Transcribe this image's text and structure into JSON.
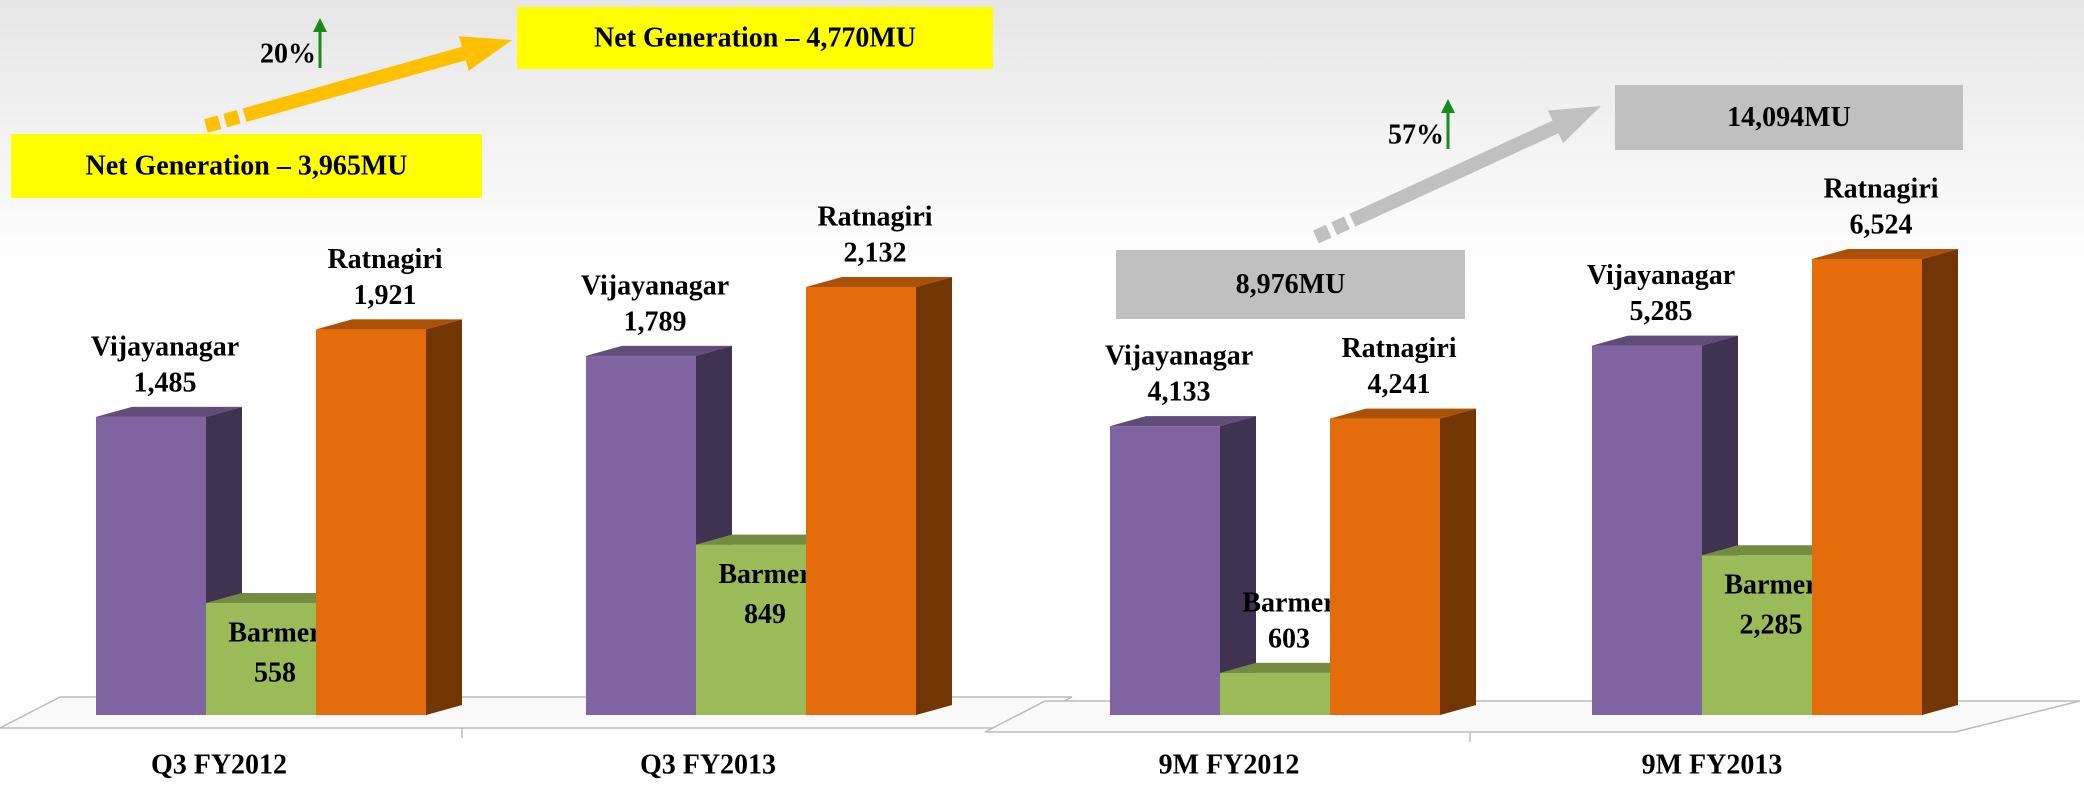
{
  "chart_data": [
    {
      "type": "bar",
      "categories": [
        "Q3 FY2012",
        "Q3 FY2013"
      ],
      "series": [
        {
          "name": "Vijayanagar",
          "color": "#8064a2",
          "values": [
            1485,
            1789
          ],
          "value_labels": [
            "1,485",
            "1,789"
          ]
        },
        {
          "name": "Barmer",
          "color": "#9bbb59",
          "values": [
            558,
            849
          ],
          "value_labels": [
            "558",
            "849"
          ]
        },
        {
          "name": "Ratnagiri",
          "color": "#e46c0a",
          "values": [
            1921,
            2132
          ],
          "value_labels": [
            "1,921",
            "2,132"
          ]
        }
      ],
      "totals": [
        "Net Generation  –  3,965MU",
        "Net Generation  –  4,770MU"
      ],
      "growth": "20%"
    },
    {
      "type": "bar",
      "categories": [
        "9M FY2012",
        "9M FY2013"
      ],
      "series": [
        {
          "name": "Vijayanagar",
          "color": "#8064a2",
          "values": [
            4133,
            5285
          ],
          "value_labels": [
            "4,133",
            "5,285"
          ]
        },
        {
          "name": "Barmer",
          "color": "#9bbb59",
          "values": [
            603,
            2285
          ],
          "value_labels": [
            "603",
            "2,285"
          ]
        },
        {
          "name": "Ratnagiri",
          "color": "#e46c0a",
          "values": [
            4241,
            6524
          ],
          "value_labels": [
            "4,241",
            "6,524"
          ]
        }
      ],
      "totals": [
        "8,976MU",
        "14,094MU"
      ],
      "growth": "57%"
    }
  ]
}
